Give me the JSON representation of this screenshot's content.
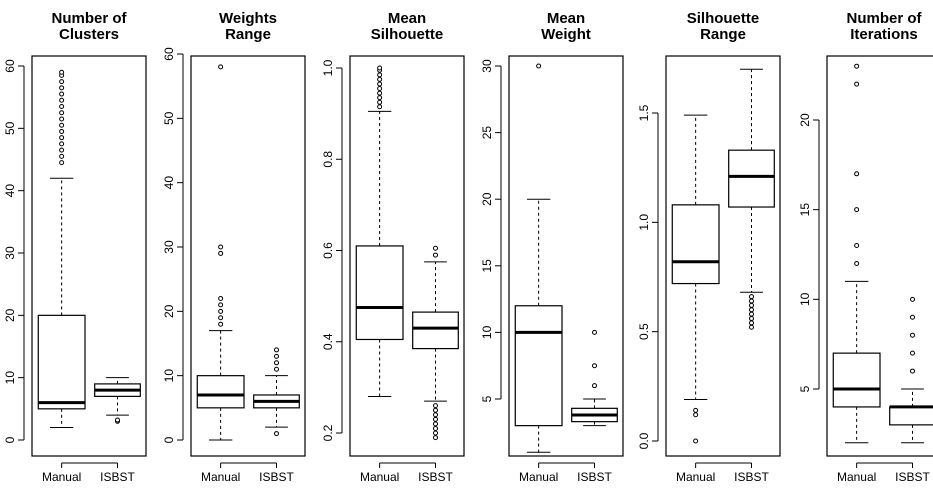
{
  "chart_data": [
    {
      "type": "box",
      "title_lines": [
        "Number of",
        "Clusters"
      ],
      "ylim": [
        0,
        60
      ],
      "yticks": [
        "0",
        "10",
        "20",
        "30",
        "40",
        "50",
        "60"
      ],
      "ytick_values": [
        0,
        10,
        20,
        30,
        40,
        50,
        60
      ],
      "boxes": [
        {
          "label": "Manual",
          "whisker_low": 2,
          "q1": 5,
          "median": 6,
          "q3": 20,
          "whisker_high": 42,
          "outliers": [
            44.5,
            45.5,
            46.5,
            47.5,
            48.5,
            49.5,
            50.5,
            51.5,
            52.5,
            53.5,
            54.5,
            55.5,
            56.5,
            57.5,
            58.5,
            59
          ]
        },
        {
          "label": "ISBST",
          "whisker_low": 4,
          "q1": 7,
          "median": 8,
          "q3": 9,
          "whisker_high": 10,
          "outliers": [
            3,
            3.2
          ]
        }
      ]
    },
    {
      "type": "box",
      "title_lines": [
        "Weights",
        "Range"
      ],
      "ylim": [
        0,
        60
      ],
      "yticks": [
        "0",
        "10",
        "20",
        "30",
        "40",
        "50",
        "60"
      ],
      "ytick_values": [
        0,
        10,
        20,
        30,
        40,
        50,
        60
      ],
      "boxes": [
        {
          "label": "Manual",
          "whisker_low": 0,
          "q1": 5,
          "median": 7,
          "q3": 10,
          "whisker_high": 17,
          "outliers": [
            18,
            19,
            20,
            21,
            22,
            29,
            30,
            58
          ]
        },
        {
          "label": "ISBST",
          "whisker_low": 2,
          "q1": 5,
          "median": 6,
          "q3": 7,
          "whisker_high": 10,
          "outliers": [
            1,
            11,
            12,
            13,
            14
          ]
        }
      ]
    },
    {
      "type": "box",
      "title_lines": [
        "Mean",
        "Silhouette"
      ],
      "ylim": [
        0.2,
        1.0
      ],
      "yticks": [
        "0.2",
        "0.4",
        "0.6",
        "0.8",
        "1.0"
      ],
      "ytick_values": [
        0.2,
        0.4,
        0.6,
        0.8,
        1.0
      ],
      "boxes": [
        {
          "label": "Manual",
          "whisker_low": 0.28,
          "q1": 0.405,
          "median": 0.475,
          "q3": 0.61,
          "whisker_high": 0.905,
          "outliers": [
            0.915,
            0.925,
            0.935,
            0.945,
            0.955,
            0.965,
            0.975,
            0.985,
            0.995,
            1.0
          ]
        },
        {
          "label": "ISBST",
          "whisker_low": 0.27,
          "q1": 0.385,
          "median": 0.43,
          "q3": 0.465,
          "whisker_high": 0.575,
          "outliers": [
            0.59,
            0.605,
            0.19,
            0.2,
            0.21,
            0.22,
            0.23,
            0.24,
            0.25,
            0.26
          ]
        }
      ]
    },
    {
      "type": "box",
      "title_lines": [
        "Mean",
        "Weight"
      ],
      "ylim": [
        0,
        30
      ],
      "yticks": [
        "5",
        "10",
        "15",
        "20",
        "25",
        "30"
      ],
      "ytick_values": [
        5,
        10,
        15,
        20,
        25,
        30
      ],
      "boxes": [
        {
          "label": "Manual",
          "whisker_low": 1,
          "q1": 3,
          "median": 10,
          "q3": 12,
          "whisker_high": 20,
          "outliers": [
            30
          ]
        },
        {
          "label": "ISBST",
          "whisker_low": 3,
          "q1": 3.3,
          "median": 3.8,
          "q3": 4.3,
          "whisker_high": 5,
          "outliers": [
            6,
            7.5,
            10
          ]
        }
      ]
    },
    {
      "type": "box",
      "title_lines": [
        "Silhouette",
        "Range"
      ],
      "ylim": [
        0,
        1.7
      ],
      "yticks": [
        "0.0",
        "0.5",
        "1.0",
        "1.5"
      ],
      "ytick_values": [
        0.0,
        0.5,
        1.0,
        1.5
      ],
      "boxes": [
        {
          "label": "Manual",
          "whisker_low": 0.19,
          "q1": 0.72,
          "median": 0.82,
          "q3": 1.08,
          "whisker_high": 1.49,
          "outliers": [
            0.0,
            0.12,
            0.14
          ]
        },
        {
          "label": "ISBST",
          "whisker_low": 0.68,
          "q1": 1.07,
          "median": 1.21,
          "q3": 1.33,
          "whisker_high": 1.7,
          "outliers": [
            0.52,
            0.54,
            0.56,
            0.58,
            0.6,
            0.62,
            0.64,
            0.66
          ]
        }
      ]
    },
    {
      "type": "box",
      "title_lines": [
        "Number of",
        "Iterations"
      ],
      "ylim": [
        2,
        23
      ],
      "yticks": [
        "5",
        "10",
        "15",
        "20"
      ],
      "ytick_values": [
        5,
        10,
        15,
        20
      ],
      "boxes": [
        {
          "label": "Manual",
          "whisker_low": 2,
          "q1": 4,
          "median": 5,
          "q3": 7,
          "whisker_high": 11,
          "outliers": [
            12,
            13,
            15,
            17,
            22,
            23
          ]
        },
        {
          "label": "ISBST",
          "whisker_low": 2,
          "q1": 3,
          "median": 4,
          "q3": 4,
          "whisker_high": 5,
          "outliers": [
            6,
            7,
            8,
            9,
            10
          ]
        }
      ]
    }
  ]
}
